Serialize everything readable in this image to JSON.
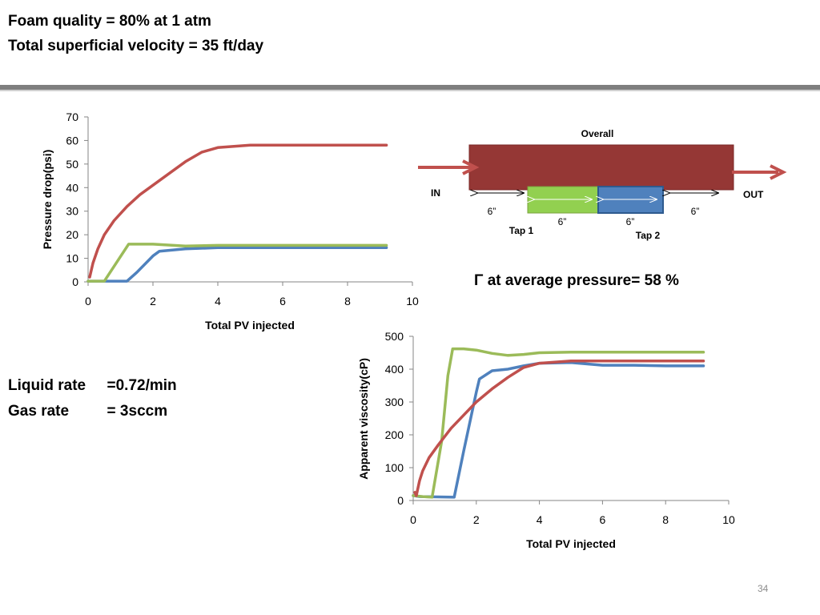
{
  "header": {
    "line1": "Foam quality = 80%  at 1 atm",
    "line2": "Total superficial velocity = 35 ft/day"
  },
  "notes": {
    "liquid_rate": "Liquid rate     =0.72/min",
    "gas_rate": "Gas rate         = 3sccm"
  },
  "gamma_text": "Γ at average pressure= 58 %",
  "page_number": "34",
  "colors": {
    "red": "#c0504d",
    "green": "#9bbb59",
    "blue": "#4f81bd",
    "core": "#953735"
  },
  "diagram": {
    "overall_label": "Overall",
    "in_label": "IN",
    "out_label": "OUT",
    "tap1_label": "Tap 1",
    "tap2_label": "Tap 2",
    "seg_left": "6”",
    "seg_tap1": "6”",
    "seg_tap2": "6”",
    "seg_right": "6”"
  },
  "chart_data": [
    {
      "type": "line",
      "xlabel": "Total PV injected",
      "ylabel": "Pressure drop(psi)",
      "xlim": [
        0,
        10
      ],
      "ylim": [
        0,
        70
      ],
      "xticks": [
        "0",
        "2",
        "4",
        "6",
        "8",
        "10"
      ],
      "yticks": [
        "0",
        "10",
        "20",
        "30",
        "40",
        "50",
        "60",
        "70"
      ],
      "grid": false,
      "series": [
        {
          "color": "#4f81bd",
          "x": [
            0,
            0.5,
            1.2,
            1.5,
            2.0,
            2.2,
            3.0,
            4.0,
            6.0,
            8.0,
            9.2
          ],
          "y": [
            0.3,
            0.3,
            0.3,
            4,
            11,
            13,
            14,
            14.5,
            14.5,
            14.5,
            14.5
          ]
        },
        {
          "color": "#9bbb59",
          "x": [
            0,
            0.5,
            1.25,
            2.0,
            3.0,
            4.0,
            6.0,
            8.0,
            9.2
          ],
          "y": [
            0.3,
            0.3,
            16,
            16,
            15.2,
            15.5,
            15.5,
            15.5,
            15.5
          ]
        },
        {
          "color": "#c0504d",
          "x": [
            0.05,
            0.15,
            0.3,
            0.5,
            0.8,
            1.2,
            1.6,
            2.0,
            2.5,
            3.0,
            3.5,
            4.0,
            5.0,
            6.0,
            7.0,
            8.0,
            9.2
          ],
          "y": [
            2,
            8,
            14,
            20,
            26,
            32,
            37,
            41,
            46,
            51,
            55,
            57,
            58,
            58,
            58,
            58,
            58
          ]
        }
      ]
    },
    {
      "type": "line",
      "xlabel": "Total PV injected",
      "ylabel": "Apparent viscosity(cP)",
      "xlim": [
        0,
        10
      ],
      "ylim": [
        0,
        500
      ],
      "xticks": [
        "0",
        "2",
        "4",
        "6",
        "8",
        "10"
      ],
      "yticks": [
        "0",
        "100",
        "200",
        "300",
        "400",
        "500"
      ],
      "grid": false,
      "series": [
        {
          "color": "#4f81bd",
          "x": [
            0,
            0.2,
            1.3,
            1.6,
            2.0,
            2.1,
            2.5,
            3.0,
            3.5,
            4.0,
            5.0,
            6.0,
            7.0,
            8.0,
            9.2
          ],
          "y": [
            15,
            12,
            10,
            150,
            330,
            370,
            395,
            400,
            410,
            418,
            420,
            412,
            412,
            410,
            410
          ]
        },
        {
          "color": "#9bbb59",
          "x": [
            0,
            0.3,
            0.6,
            0.9,
            1.1,
            1.25,
            1.6,
            2.0,
            2.5,
            3.0,
            3.5,
            4.0,
            5.0,
            6.0,
            7.0,
            8.0,
            9.2
          ],
          "y": [
            15,
            12,
            10,
            180,
            380,
            462,
            462,
            458,
            448,
            442,
            445,
            450,
            452,
            452,
            452,
            452,
            452
          ]
        },
        {
          "color": "#c0504d",
          "x": [
            0.05,
            0.1,
            0.2,
            0.3,
            0.5,
            0.8,
            1.2,
            1.6,
            2.0,
            2.5,
            3.0,
            3.5,
            4.0,
            5.0,
            6.0,
            7.0,
            8.0,
            9.2
          ],
          "y": [
            25,
            15,
            60,
            90,
            130,
            170,
            220,
            260,
            300,
            340,
            375,
            405,
            418,
            425,
            425,
            425,
            425,
            425
          ]
        }
      ]
    }
  ]
}
